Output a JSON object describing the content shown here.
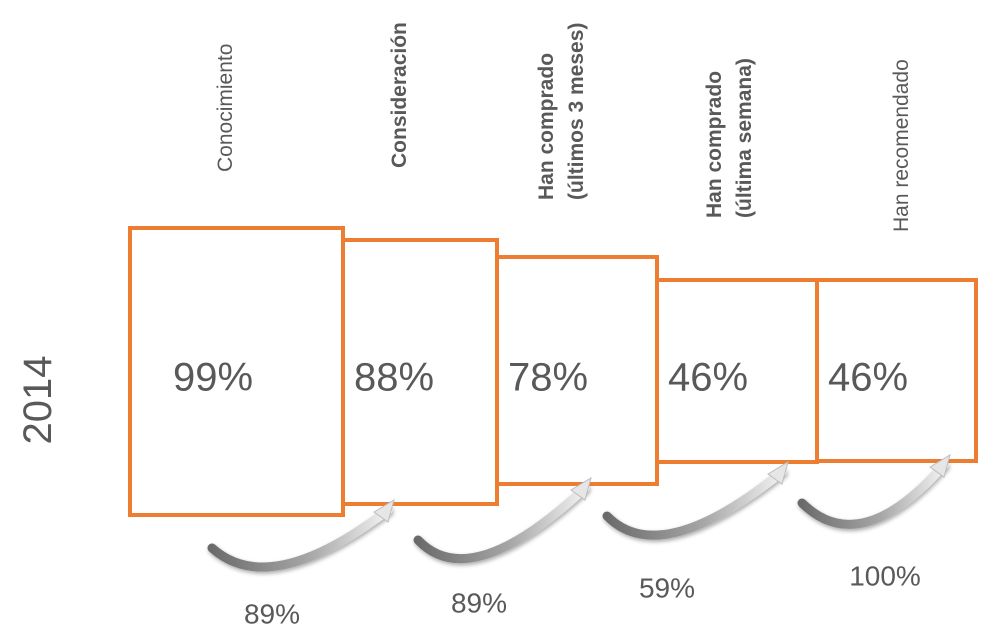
{
  "year": "2014",
  "stages": [
    {
      "label_lines": [
        "Conocimiento"
      ],
      "bold": false,
      "value": "99%"
    },
    {
      "label_lines": [
        "Consideración"
      ],
      "bold": true,
      "value": "88%"
    },
    {
      "label_lines": [
        "Han comprado",
        "(últimos 3 meses)"
      ],
      "bold": true,
      "value": "78%"
    },
    {
      "label_lines": [
        "Han comprado",
        "(última semana)"
      ],
      "bold": true,
      "value": "46%"
    },
    {
      "label_lines": [
        "Han recomendado"
      ],
      "bold": false,
      "value": "46%"
    }
  ],
  "conversions": [
    "89%",
    "89%",
    "59%",
    "100%"
  ],
  "colors": {
    "box_border": "#ED7D31",
    "value_text": "#595959",
    "label_text": "#595959",
    "arrow_dark": "#7a7a7a",
    "arrow_light": "#ececec"
  }
}
